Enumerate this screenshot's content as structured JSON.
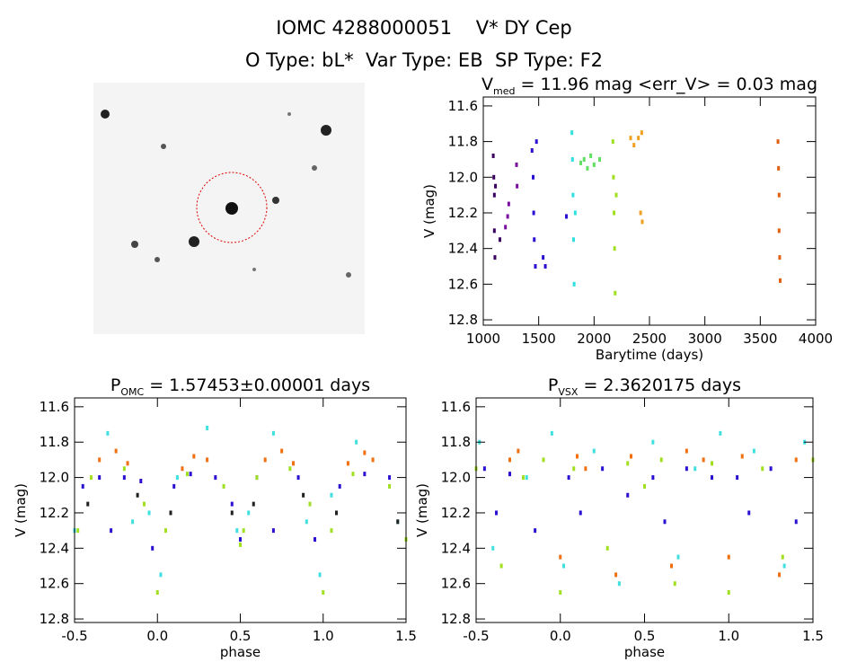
{
  "header": {
    "title": "IOMC 4288000051    V* DY Cep",
    "subtitle": "O Type: bL*  Var Type: EB  SP Type: F2"
  },
  "chart_data": [
    {
      "type": "scatter",
      "title_parts": [
        "V",
        "med",
        " = 11.96 mag <err_V> = 0.03 mag"
      ],
      "xlabel": "Barytime (days)",
      "ylabel": "V (mag)",
      "invert_y": true,
      "xlim": [
        1000,
        4000
      ],
      "ylim": [
        11.55,
        12.83
      ],
      "xticks": [
        1000,
        1500,
        2000,
        2500,
        3000,
        3500,
        4000
      ],
      "yticks": [
        11.6,
        11.8,
        {
          "value": 12,
          "label": "12.0"
        },
        12.2,
        12.4,
        12.6,
        12.8
      ],
      "series": [
        {
          "color": "#3a0060",
          "x": [
            1090,
            1095,
            1100,
            1100,
            1105,
            1110,
            1150
          ],
          "values": [
            11.88,
            12.0,
            12.1,
            12.3,
            12.45,
            12.05,
            12.35
          ]
        },
        {
          "color": "#7a10a0",
          "x": [
            1200,
            1220,
            1230,
            1300,
            1305
          ],
          "values": [
            12.28,
            12.22,
            12.15,
            11.93,
            12.05
          ]
        },
        {
          "color": "#2a10d0",
          "x": [
            1440,
            1450,
            1455,
            1460,
            1470,
            1480,
            1540,
            1560,
            1750
          ],
          "values": [
            11.85,
            12.0,
            12.2,
            12.35,
            12.5,
            11.8,
            12.45,
            12.5,
            12.22
          ]
        },
        {
          "color": "#30e0e0",
          "x": [
            1800,
            1805,
            1810,
            1815,
            1820,
            1830
          ],
          "values": [
            11.75,
            11.9,
            12.1,
            12.35,
            12.6,
            12.2
          ]
        },
        {
          "color": "#60e060",
          "x": [
            1880,
            1910,
            1940,
            1970,
            2000,
            2050
          ],
          "values": [
            11.92,
            11.9,
            11.95,
            11.88,
            11.93,
            11.9
          ]
        },
        {
          "color": "#a0e020",
          "x": [
            2170,
            2175,
            2180,
            2185,
            2190,
            2200
          ],
          "values": [
            11.8,
            12.0,
            12.2,
            12.4,
            12.65,
            12.1
          ]
        },
        {
          "color": "#f0a020",
          "x": [
            2330,
            2360,
            2400,
            2420,
            2430,
            2435
          ],
          "values": [
            11.78,
            11.82,
            11.78,
            12.2,
            11.75,
            12.25
          ]
        },
        {
          "color": "#e06010",
          "x": [
            3660,
            3665,
            3670,
            3670,
            3675,
            3680
          ],
          "values": [
            11.8,
            11.95,
            12.1,
            12.3,
            12.45,
            12.58
          ]
        }
      ]
    },
    {
      "type": "scatter",
      "title_parts": [
        "P",
        "OMC",
        " = 1.57453±0.00001 days"
      ],
      "xlabel": "phase",
      "ylabel": "V (mag)",
      "invert_y": true,
      "xlim": [
        -0.5,
        1.5
      ],
      "ylim": [
        11.55,
        12.82
      ],
      "xticks": [
        -0.5,
        {
          "value": 0,
          "label": "0.0"
        },
        0.5,
        {
          "value": 1,
          "label": "1.0"
        },
        1.5
      ],
      "yticks": [
        11.6,
        11.8,
        {
          "value": 12,
          "label": "12.0"
        },
        12.2,
        12.4,
        12.6,
        12.8
      ],
      "series": [
        {
          "color": "#2a10d0",
          "x": [
            -0.45,
            -0.35,
            -0.28,
            -0.2,
            -0.1,
            -0.03,
            0.1,
            0.2,
            0.35,
            0.45,
            0.5,
            0.6,
            0.7,
            0.85,
            0.95,
            1.1,
            1.25,
            1.4
          ],
          "values": [
            12.05,
            12.0,
            12.3,
            12.0,
            12.02,
            12.4,
            12.05,
            11.98,
            12.0,
            12.15,
            12.35,
            12.0,
            12.3,
            12.0,
            12.35,
            12.05,
            11.98,
            12.0
          ]
        },
        {
          "color": "#f07010",
          "x": [
            -0.35,
            -0.25,
            -0.18,
            0.15,
            0.22,
            0.3,
            0.65,
            0.75,
            0.82,
            1.15,
            1.25,
            1.3
          ],
          "values": [
            11.9,
            11.85,
            11.92,
            11.95,
            11.88,
            11.9,
            11.9,
            11.85,
            11.92,
            11.92,
            11.86,
            11.9
          ]
        },
        {
          "color": "#40e0e0",
          "x": [
            -0.5,
            -0.3,
            -0.15,
            -0.05,
            0.02,
            0.12,
            0.3,
            0.48,
            0.55,
            0.7,
            0.9,
            0.98,
            1.05,
            1.2,
            1.45
          ],
          "values": [
            12.3,
            11.75,
            12.25,
            12.2,
            12.55,
            12.0,
            11.72,
            12.3,
            12.2,
            11.75,
            12.25,
            12.55,
            12.1,
            11.8,
            12.25
          ]
        },
        {
          "color": "#a0e020",
          "x": [
            -0.48,
            -0.4,
            -0.2,
            -0.08,
            0.0,
            0.05,
            0.18,
            0.4,
            0.5,
            0.52,
            0.6,
            0.8,
            0.92,
            1.0,
            1.05,
            1.18,
            1.4,
            1.5
          ],
          "values": [
            12.3,
            12.0,
            11.95,
            12.15,
            12.65,
            12.3,
            11.98,
            12.05,
            12.38,
            12.3,
            12.0,
            11.95,
            12.15,
            12.65,
            12.3,
            11.98,
            12.05,
            12.35
          ]
        },
        {
          "color": "#202020",
          "x": [
            -0.42,
            -0.12,
            0.08,
            0.45,
            0.58,
            0.88,
            1.08,
            1.45
          ],
          "values": [
            12.15,
            12.1,
            12.2,
            12.2,
            12.15,
            12.1,
            12.2,
            12.25
          ]
        }
      ]
    },
    {
      "type": "scatter",
      "title_parts": [
        "P",
        "VSX",
        " = 2.3620175 days"
      ],
      "xlabel": "phase",
      "ylabel": "V (mag)",
      "invert_y": true,
      "xlim": [
        -0.5,
        1.5
      ],
      "ylim": [
        11.55,
        12.82
      ],
      "xticks": [
        -0.5,
        {
          "value": 0,
          "label": "0.0"
        },
        0.5,
        {
          "value": 1,
          "label": "1.0"
        },
        1.5
      ],
      "yticks": [
        11.6,
        11.8,
        {
          "value": 12,
          "label": "12.0"
        },
        12.2,
        12.4,
        12.6,
        12.8
      ],
      "series": [
        {
          "color": "#2a10d0",
          "x": [
            -0.45,
            -0.38,
            -0.3,
            -0.15,
            0.05,
            0.12,
            0.25,
            0.4,
            0.55,
            0.62,
            0.75,
            0.9,
            1.05,
            1.12,
            1.25,
            1.4
          ],
          "values": [
            11.95,
            12.2,
            11.98,
            12.3,
            12.0,
            12.2,
            11.95,
            12.1,
            12.0,
            12.25,
            11.95,
            12.0,
            12.0,
            12.2,
            11.95,
            12.25
          ]
        },
        {
          "color": "#f07010",
          "x": [
            -0.3,
            -0.25,
            0.0,
            0.1,
            0.15,
            0.33,
            0.42,
            0.66,
            0.75,
            0.85,
            1.0,
            1.08,
            1.3,
            1.4
          ],
          "values": [
            11.9,
            11.85,
            12.45,
            11.88,
            11.95,
            12.55,
            11.88,
            12.5,
            11.85,
            11.9,
            12.45,
            11.88,
            12.55,
            11.9
          ]
        },
        {
          "color": "#40e0e0",
          "x": [
            -0.48,
            -0.4,
            -0.2,
            -0.05,
            0.02,
            0.2,
            0.35,
            0.55,
            0.7,
            0.8,
            0.95,
            1.15,
            1.33,
            1.45
          ],
          "values": [
            11.8,
            12.4,
            12.0,
            11.75,
            12.5,
            11.85,
            12.6,
            11.8,
            12.45,
            11.95,
            11.75,
            11.85,
            12.5,
            11.8
          ]
        },
        {
          "color": "#a0e020",
          "x": [
            -0.5,
            -0.35,
            -0.22,
            -0.1,
            0.0,
            0.08,
            0.28,
            0.4,
            0.5,
            0.6,
            0.68,
            0.9,
            1.0,
            1.2,
            1.32,
            1.5
          ],
          "values": [
            11.95,
            12.5,
            12.0,
            11.9,
            12.65,
            11.95,
            12.4,
            11.92,
            12.05,
            11.9,
            12.6,
            11.92,
            12.65,
            11.95,
            12.45,
            11.9
          ]
        }
      ]
    }
  ]
}
